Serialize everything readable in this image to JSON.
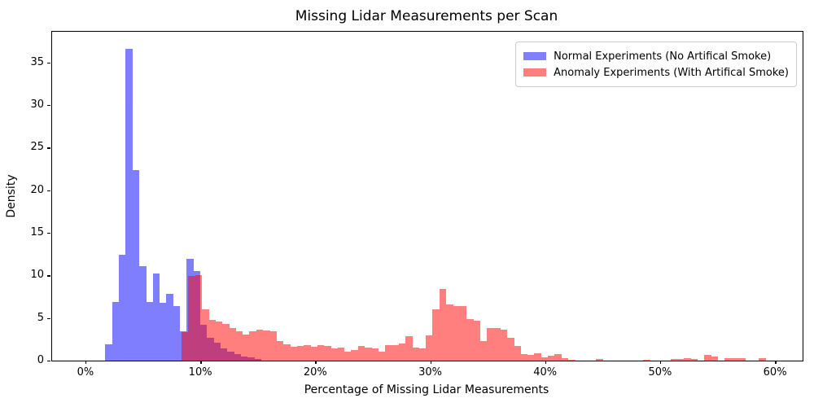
{
  "title": "Missing Lidar Measurements per Scan",
  "axes": {
    "xlabel": "Percentage of Missing Lidar Measurements",
    "ylabel": "Density",
    "x_ticks": [
      {
        "v": 0,
        "label": "0%"
      },
      {
        "v": 10,
        "label": "10%"
      },
      {
        "v": 20,
        "label": "20%"
      },
      {
        "v": 30,
        "label": "30%"
      },
      {
        "v": 40,
        "label": "40%"
      },
      {
        "v": 50,
        "label": "50%"
      },
      {
        "v": 60,
        "label": "60%"
      }
    ],
    "y_ticks": [
      {
        "v": 0,
        "label": "0"
      },
      {
        "v": 5,
        "label": "5"
      },
      {
        "v": 10,
        "label": "10"
      },
      {
        "v": 15,
        "label": "15"
      },
      {
        "v": 20,
        "label": "20"
      },
      {
        "v": 25,
        "label": "25"
      },
      {
        "v": 30,
        "label": "30"
      },
      {
        "v": 35,
        "label": "35"
      }
    ]
  },
  "legend": {
    "entries": [
      {
        "label": "Normal Experiments (No Artifical Smoke)",
        "color": "#0000ff",
        "alpha": 0.5
      },
      {
        "label": "Anomaly Experiments (With Artifical Smoke)",
        "color": "#ff0000",
        "alpha": 0.5
      }
    ]
  },
  "chart_data": {
    "type": "histogram",
    "title": "Missing Lidar Measurements per Scan",
    "xlabel": "Percentage of Missing Lidar Measurements",
    "ylabel": "Density",
    "x_unit": "percent_missing",
    "y_unit": "density",
    "grid": false,
    "legend_position": "upper right",
    "bin_width_pct": 0.59,
    "x_range_pct": [
      -2.9,
      62.4
    ],
    "y_range": [
      0,
      38.6
    ],
    "series": [
      {
        "name": "Normal Experiments (No Artifical Smoke)",
        "color": "#0000ff",
        "alpha": 0.5,
        "bins_start_pct_and_density": [
          [
            1.72,
            1.9
          ],
          [
            2.31,
            6.9
          ],
          [
            2.9,
            12.4
          ],
          [
            3.49,
            36.6
          ],
          [
            4.08,
            22.4
          ],
          [
            4.67,
            11.1
          ],
          [
            5.26,
            6.9
          ],
          [
            5.85,
            10.2
          ],
          [
            6.44,
            6.8
          ],
          [
            7.03,
            7.8
          ],
          [
            7.62,
            6.4
          ],
          [
            8.21,
            3.4
          ],
          [
            8.8,
            11.9
          ],
          [
            9.39,
            10.5
          ],
          [
            9.98,
            4.2
          ],
          [
            10.57,
            2.7
          ],
          [
            11.16,
            2.1
          ],
          [
            11.75,
            1.4
          ],
          [
            12.34,
            1.1
          ],
          [
            12.93,
            0.8
          ],
          [
            13.52,
            0.5
          ],
          [
            14.11,
            0.4
          ],
          [
            14.7,
            0.2
          ]
        ]
      },
      {
        "name": "Anomaly Experiments (With Artifical Smoke)",
        "color": "#ff0000",
        "alpha": 0.5,
        "bins_start_pct_and_density": [
          [
            8.37,
            3.3
          ],
          [
            8.96,
            9.9
          ],
          [
            9.55,
            10.0
          ],
          [
            10.14,
            6.0
          ],
          [
            10.73,
            4.8
          ],
          [
            11.32,
            4.6
          ],
          [
            11.91,
            4.3
          ],
          [
            12.5,
            3.8
          ],
          [
            13.09,
            3.4
          ],
          [
            13.68,
            3.1
          ],
          [
            14.27,
            3.4
          ],
          [
            14.86,
            3.6
          ],
          [
            15.45,
            3.5
          ],
          [
            16.04,
            3.4
          ],
          [
            16.63,
            2.3
          ],
          [
            17.22,
            1.9
          ],
          [
            17.81,
            1.6
          ],
          [
            18.4,
            1.75
          ],
          [
            18.99,
            1.85
          ],
          [
            19.58,
            1.6
          ],
          [
            20.17,
            1.85
          ],
          [
            20.76,
            1.7
          ],
          [
            21.35,
            1.45
          ],
          [
            21.94,
            1.55
          ],
          [
            22.53,
            1.05
          ],
          [
            23.12,
            1.2
          ],
          [
            23.71,
            1.75
          ],
          [
            24.3,
            1.5
          ],
          [
            24.89,
            1.4
          ],
          [
            25.48,
            1.05
          ],
          [
            26.07,
            1.85
          ],
          [
            26.66,
            1.85
          ],
          [
            27.25,
            2.05
          ],
          [
            27.84,
            2.9
          ],
          [
            28.43,
            1.5
          ],
          [
            29.02,
            1.45
          ],
          [
            29.61,
            2.95
          ],
          [
            30.2,
            6.05
          ],
          [
            30.79,
            8.4
          ],
          [
            31.38,
            6.6
          ],
          [
            31.97,
            6.45
          ],
          [
            32.56,
            6.4
          ],
          [
            33.15,
            4.85
          ],
          [
            33.74,
            4.7
          ],
          [
            34.33,
            2.25
          ],
          [
            34.92,
            3.85
          ],
          [
            35.51,
            3.8
          ],
          [
            36.1,
            3.6
          ],
          [
            36.69,
            2.65
          ],
          [
            37.28,
            1.7
          ],
          [
            37.87,
            0.8
          ],
          [
            38.46,
            0.65
          ],
          [
            39.05,
            0.9
          ],
          [
            39.64,
            0.4
          ],
          [
            40.23,
            0.55
          ],
          [
            40.82,
            0.8
          ],
          [
            41.41,
            0.3
          ],
          [
            42.0,
            0.1
          ],
          [
            44.41,
            0.15
          ],
          [
            48.55,
            0.12
          ],
          [
            50.91,
            0.2
          ],
          [
            51.5,
            0.22
          ],
          [
            52.09,
            0.25
          ],
          [
            52.68,
            0.2
          ],
          [
            53.86,
            0.65
          ],
          [
            54.45,
            0.5
          ],
          [
            55.63,
            0.25
          ],
          [
            56.22,
            0.3
          ],
          [
            56.81,
            0.27
          ],
          [
            58.58,
            0.3
          ]
        ]
      }
    ]
  }
}
